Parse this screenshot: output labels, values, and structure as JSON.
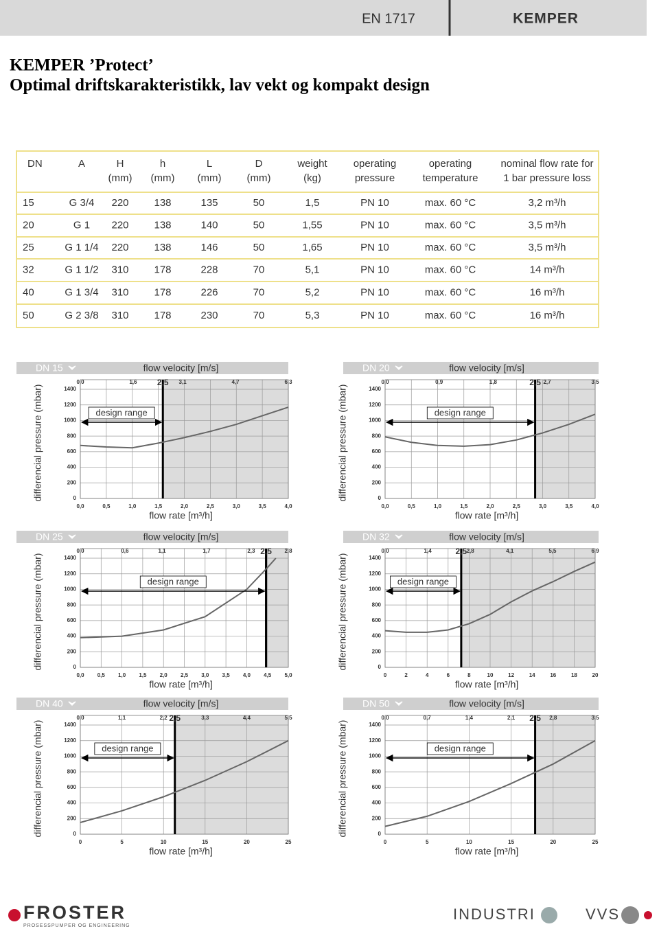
{
  "header": {
    "standard": "EN 1717",
    "brand": "KEMPER"
  },
  "title": [
    "KEMPER ’Protect’",
    "Optimal driftskarakteristikk, lav vekt og kompakt design"
  ],
  "table": {
    "header": [
      [
        "DN"
      ],
      [
        "A"
      ],
      [
        "H",
        "(mm)"
      ],
      [
        "h",
        "(mm)"
      ],
      [
        "L",
        "(mm)"
      ],
      [
        "D",
        "(mm)"
      ],
      [
        "weight",
        "(kg)"
      ],
      [
        "operating",
        "pressure"
      ],
      [
        "operating",
        "temperature"
      ],
      [
        "nominal flow rate for",
        "1 bar pressure loss"
      ]
    ],
    "rows": [
      [
        "15",
        "G 3/4",
        "220",
        "138",
        "135",
        "50",
        "1,5",
        "PN 10",
        "max. 60 °C",
        "3,2 m³/h"
      ],
      [
        "20",
        "G 1",
        "220",
        "138",
        "140",
        "50",
        "1,55",
        "PN 10",
        "max. 60 °C",
        "3,5 m³/h"
      ],
      [
        "25",
        "G 1 1/4",
        "220",
        "138",
        "146",
        "50",
        "1,65",
        "PN 10",
        "max. 60 °C",
        "3,5 m³/h"
      ],
      [
        "32",
        "G 1 1/2",
        "310",
        "178",
        "228",
        "70",
        "5,1",
        "PN 10",
        "max. 60 °C",
        "14 m³/h"
      ],
      [
        "40",
        "G 1 3/4",
        "310",
        "178",
        "226",
        "70",
        "5,2",
        "PN 10",
        "max. 60 °C",
        "16 m³/h"
      ],
      [
        "50",
        "G 2 3/8",
        "310",
        "178",
        "230",
        "70",
        "5,3",
        "PN 10",
        "max. 60 °C",
        "16 m³/h"
      ]
    ]
  },
  "chart_data": [
    {
      "type": "line",
      "title": "DN 15",
      "x2label": "flow velocity [m/s]",
      "xlabel": "flow rate [m³/h]",
      "ylabel": "differencial pressure (mbar)",
      "annotation": "design range",
      "xlim": [
        0,
        4
      ],
      "xticks": [
        {
          "value": 0,
          "label": "0,0"
        },
        {
          "value": 0.5,
          "label": "0,5"
        },
        {
          "value": 1,
          "label": "1,0"
        },
        {
          "value": 1.5,
          "label": "1,5"
        },
        {
          "value": 2,
          "label": "2,0"
        },
        {
          "value": 2.5,
          "label": "2,5"
        },
        {
          "value": 3,
          "label": "3,0"
        },
        {
          "value": 3.5,
          "label": "3,5"
        },
        {
          "value": 4,
          "label": "4,0"
        }
      ],
      "x2lim": [
        0,
        6.3
      ],
      "x2ticks": [
        {
          "value": 0,
          "label": "0,0"
        },
        {
          "value": 1.6,
          "label": "1,6"
        },
        {
          "value": 3.1,
          "label": "3,1"
        },
        {
          "value": 4.7,
          "label": "4,7"
        },
        {
          "value": 6.3,
          "label": "6,3"
        }
      ],
      "design_limit": {
        "value": 2.5,
        "label": "2,5"
      },
      "ylim": [
        0,
        1400
      ],
      "yticks": [
        0,
        200,
        400,
        600,
        800,
        1000,
        1200,
        1400
      ],
      "x": [
        0,
        0.5,
        1,
        1.5,
        2,
        2.5,
        3,
        3.5,
        4
      ],
      "values": [
        680,
        660,
        650,
        710,
        780,
        860,
        950,
        1060,
        1170
      ],
      "color": "#666666"
    },
    {
      "type": "line",
      "title": "DN 20",
      "x2label": "flow velocity [m/s]",
      "xlabel": "flow rate [m³/h]",
      "ylabel": "differencial pressure (mbar)",
      "annotation": "design range",
      "xlim": [
        0,
        4
      ],
      "xticks": [
        {
          "value": 0,
          "label": "0,0"
        },
        {
          "value": 0.5,
          "label": "0,5"
        },
        {
          "value": 1,
          "label": "1,0"
        },
        {
          "value": 1.5,
          "label": "1,5"
        },
        {
          "value": 2,
          "label": "2,0"
        },
        {
          "value": 2.5,
          "label": "2,5"
        },
        {
          "value": 3,
          "label": "3,0"
        },
        {
          "value": 3.5,
          "label": "3,5"
        },
        {
          "value": 4,
          "label": "4,0"
        }
      ],
      "x2lim": [
        0,
        3.5
      ],
      "x2ticks": [
        {
          "value": 0,
          "label": "0,0"
        },
        {
          "value": 0.9,
          "label": "0,9"
        },
        {
          "value": 1.8,
          "label": "1,8"
        },
        {
          "value": 2.7,
          "label": "2,7"
        },
        {
          "value": 3.5,
          "label": "3,5"
        }
      ],
      "design_limit": {
        "value": 2.5,
        "label": "2,5"
      },
      "ylim": [
        0,
        1400
      ],
      "yticks": [
        0,
        200,
        400,
        600,
        800,
        1000,
        1200,
        1400
      ],
      "x": [
        0,
        0.5,
        1,
        1.5,
        2,
        2.5,
        3,
        3.5,
        4
      ],
      "values": [
        790,
        720,
        680,
        670,
        690,
        750,
        840,
        950,
        1080
      ],
      "color": "#666666"
    },
    {
      "type": "line",
      "title": "DN 25",
      "x2label": "flow velocity  [m/s]",
      "xlabel": "flow rate [m³/h]",
      "ylabel": "differencial pressure (mbar)",
      "annotation": "design range",
      "xlim": [
        0,
        5
      ],
      "xticks": [
        {
          "value": 0,
          "label": "0,0"
        },
        {
          "value": 0.5,
          "label": "0,5"
        },
        {
          "value": 1,
          "label": "1,0"
        },
        {
          "value": 1.5,
          "label": "1,5"
        },
        {
          "value": 2,
          "label": "2,0"
        },
        {
          "value": 2.5,
          "label": "2,5"
        },
        {
          "value": 3,
          "label": "3,0"
        },
        {
          "value": 3.5,
          "label": "3,5"
        },
        {
          "value": 4,
          "label": "4,0"
        },
        {
          "value": 4.5,
          "label": "4,5"
        },
        {
          "value": 5,
          "label": "5,0"
        }
      ],
      "x2lim": [
        0,
        2.8
      ],
      "x2ticks": [
        {
          "value": 0,
          "label": "0,0"
        },
        {
          "value": 0.6,
          "label": "0,6"
        },
        {
          "value": 1.1,
          "label": "1,1"
        },
        {
          "value": 1.7,
          "label": "1,7"
        },
        {
          "value": 2.3,
          "label": "2,3"
        },
        {
          "value": 2.8,
          "label": "2,8"
        }
      ],
      "design_limit": {
        "value": 2.5,
        "label": "2,5"
      },
      "ylim": [
        0,
        1400
      ],
      "yticks": [
        0,
        200,
        400,
        600,
        800,
        1000,
        1200,
        1400
      ],
      "x": [
        0,
        1,
        2,
        3,
        4,
        4.5,
        4.7
      ],
      "values": [
        380,
        400,
        480,
        650,
        1000,
        1280,
        1400
      ],
      "color": "#666666"
    },
    {
      "type": "line",
      "title": "DN 32",
      "x2label": "flow velocity  [m/s]",
      "xlabel": "flow rate [m³/h]",
      "ylabel": "differencial pressure (mbar)",
      "annotation": "design range",
      "xlim": [
        0,
        20
      ],
      "xticks": [
        0,
        2,
        4,
        6,
        8,
        10,
        12,
        14,
        16,
        18,
        20
      ],
      "x2lim": [
        0,
        6.9
      ],
      "x2ticks": [
        {
          "value": 0,
          "label": "0,0"
        },
        {
          "value": 1.4,
          "label": "1,4"
        },
        {
          "value": 2.8,
          "label": "2,8"
        },
        {
          "value": 4.1,
          "label": "4,1"
        },
        {
          "value": 5.5,
          "label": "5,5"
        },
        {
          "value": 6.9,
          "label": "6,9"
        }
      ],
      "design_limit": {
        "value": 2.5,
        "label": "2,5"
      },
      "ylim": [
        0,
        1400
      ],
      "yticks": [
        0,
        200,
        400,
        600,
        800,
        1000,
        1200,
        1400
      ],
      "x": [
        0,
        2,
        4,
        6,
        8,
        10,
        12,
        14,
        16,
        18,
        20
      ],
      "values": [
        470,
        450,
        450,
        480,
        560,
        680,
        840,
        980,
        1100,
        1230,
        1350
      ],
      "color": "#666666"
    },
    {
      "type": "line",
      "title": "DN 40",
      "x2label": "flow velocity [m/s]",
      "xlabel": "flow rate [m³/h]",
      "ylabel": "differencial pressure (mbar)",
      "annotation": "design range",
      "xlim": [
        0,
        25
      ],
      "xticks": [
        0,
        5,
        10,
        15,
        20,
        25
      ],
      "x2lim": [
        0,
        5.5
      ],
      "x2ticks": [
        {
          "value": 0,
          "label": "0,0"
        },
        {
          "value": 1.1,
          "label": "1,1"
        },
        {
          "value": 2.2,
          "label": "2,2"
        },
        {
          "value": 3.3,
          "label": "3,3"
        },
        {
          "value": 4.4,
          "label": "4,4"
        },
        {
          "value": 5.5,
          "label": "5,5"
        }
      ],
      "design_limit": {
        "value": 2.5,
        "label": "2,5"
      },
      "ylim": [
        0,
        1400
      ],
      "yticks": [
        0,
        200,
        400,
        600,
        800,
        1000,
        1200,
        1400
      ],
      "x": [
        0,
        5,
        10,
        15,
        20,
        25
      ],
      "values": [
        150,
        300,
        480,
        690,
        930,
        1200
      ],
      "color": "#666666"
    },
    {
      "type": "line",
      "title": "DN 50",
      "x2label": "flow velocity  [m/s]",
      "xlabel": "flow rate [m³/h]",
      "ylabel": "differencial pressure (mbar)",
      "annotation": "design range",
      "xlim": [
        0,
        25
      ],
      "xticks": [
        0,
        5,
        10,
        15,
        20,
        25
      ],
      "x2lim": [
        0,
        3.5
      ],
      "x2ticks": [
        {
          "value": 0,
          "label": "0,0"
        },
        {
          "value": 0.7,
          "label": "0,7"
        },
        {
          "value": 1.4,
          "label": "1,4"
        },
        {
          "value": 2.1,
          "label": "2,1"
        },
        {
          "value": 2.8,
          "label": "2,8"
        },
        {
          "value": 3.5,
          "label": "3,5"
        }
      ],
      "design_limit": {
        "value": 2.5,
        "label": "2,5"
      },
      "ylim": [
        0,
        1400
      ],
      "yticks": [
        0,
        200,
        400,
        600,
        800,
        1000,
        1200,
        1400
      ],
      "x": [
        0,
        5,
        10,
        15,
        20,
        25
      ],
      "values": [
        100,
        230,
        420,
        650,
        900,
        1200
      ],
      "color": "#666666"
    }
  ],
  "footer": {
    "logo": "FROSTER",
    "tagline": "PROSESSPUMPER OG ENGINEERING",
    "segments": [
      "INDUSTRI",
      "VVS"
    ]
  }
}
